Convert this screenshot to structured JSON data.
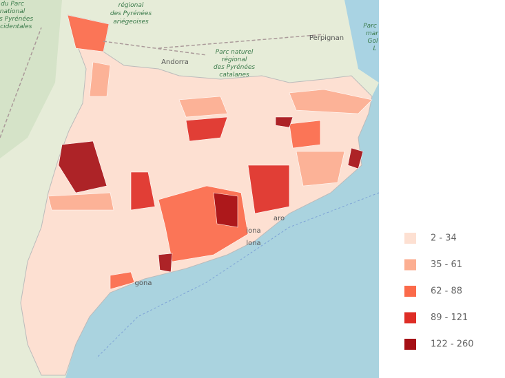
{
  "map": {
    "labels": [
      "du Parc",
      "national",
      "des Pyrénées",
      "occidentales",
      "régional",
      "des Pyrénées",
      "ariégeoises",
      "Andorra",
      "Parc naturel",
      "régional",
      "des Pyrénées",
      "catalanes",
      "Perpignan",
      "Parc",
      "mar",
      "Gol",
      "L",
      "aro",
      "iona",
      "lona",
      "gona"
    ]
  },
  "legend": {
    "items": [
      {
        "label": "2 - 34",
        "color": "#fde0d2"
      },
      {
        "label": "35 - 61",
        "color": "#fcae91"
      },
      {
        "label": "62 - 88",
        "color": "#fb6a4a"
      },
      {
        "label": "89 - 121",
        "color": "#de2d26"
      },
      {
        "label": "122 - 260",
        "color": "#a50f15"
      }
    ]
  }
}
